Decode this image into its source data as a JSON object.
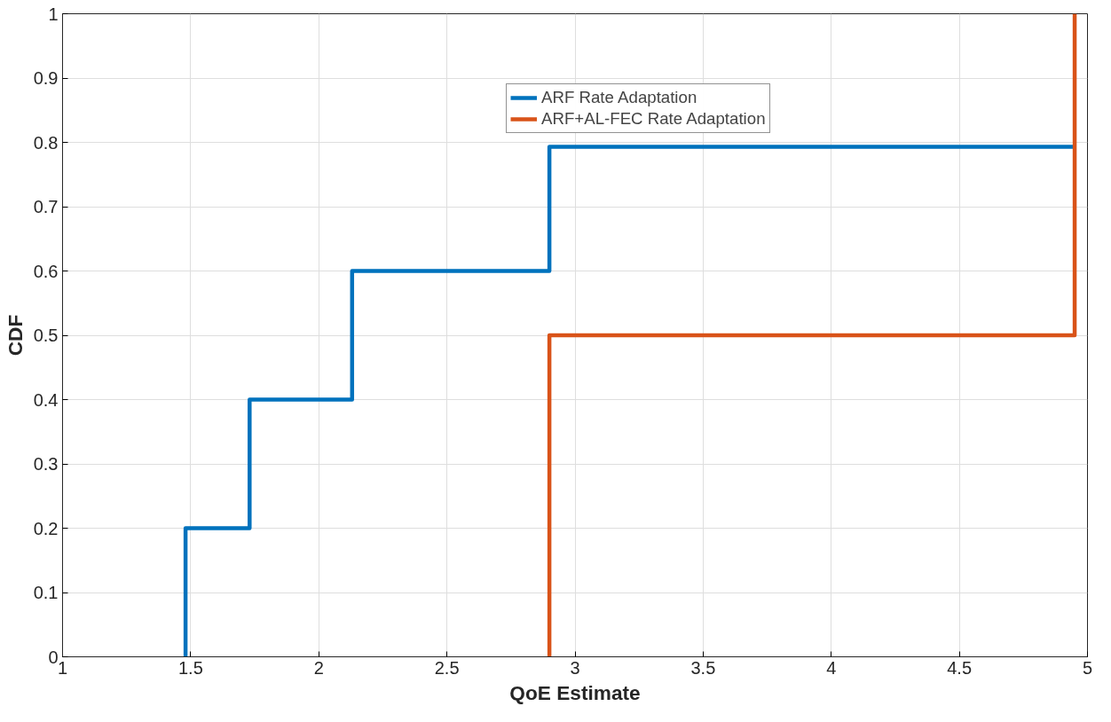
{
  "chart_data": {
    "type": "step",
    "xlabel": "QoE Estimate",
    "ylabel": "CDF",
    "xlim": [
      1,
      5
    ],
    "ylim": [
      0,
      1
    ],
    "xticks": [
      1,
      1.5,
      2,
      2.5,
      3,
      3.5,
      4,
      4.5,
      5
    ],
    "yticks": [
      0,
      0.1,
      0.2,
      0.3,
      0.4,
      0.5,
      0.6,
      0.7,
      0.8,
      0.9,
      1
    ],
    "grid": true,
    "legend": "top",
    "line_style": "solid",
    "marker": "none",
    "series": [
      {
        "name": "ARF Rate Adaptation",
        "color": "#0072bd",
        "x": [
          1.48,
          1.48,
          1.73,
          2.13,
          2.9,
          4.95
        ],
        "values": [
          0,
          0.2,
          0.4,
          0.6,
          0.793,
          0.793
        ]
      },
      {
        "name": "ARF+AL-FEC Rate Adaptation",
        "color": "#d95319",
        "x": [
          2.9,
          2.9,
          4.95,
          4.95
        ],
        "values": [
          0,
          0.5,
          0.5,
          1
        ]
      }
    ]
  }
}
